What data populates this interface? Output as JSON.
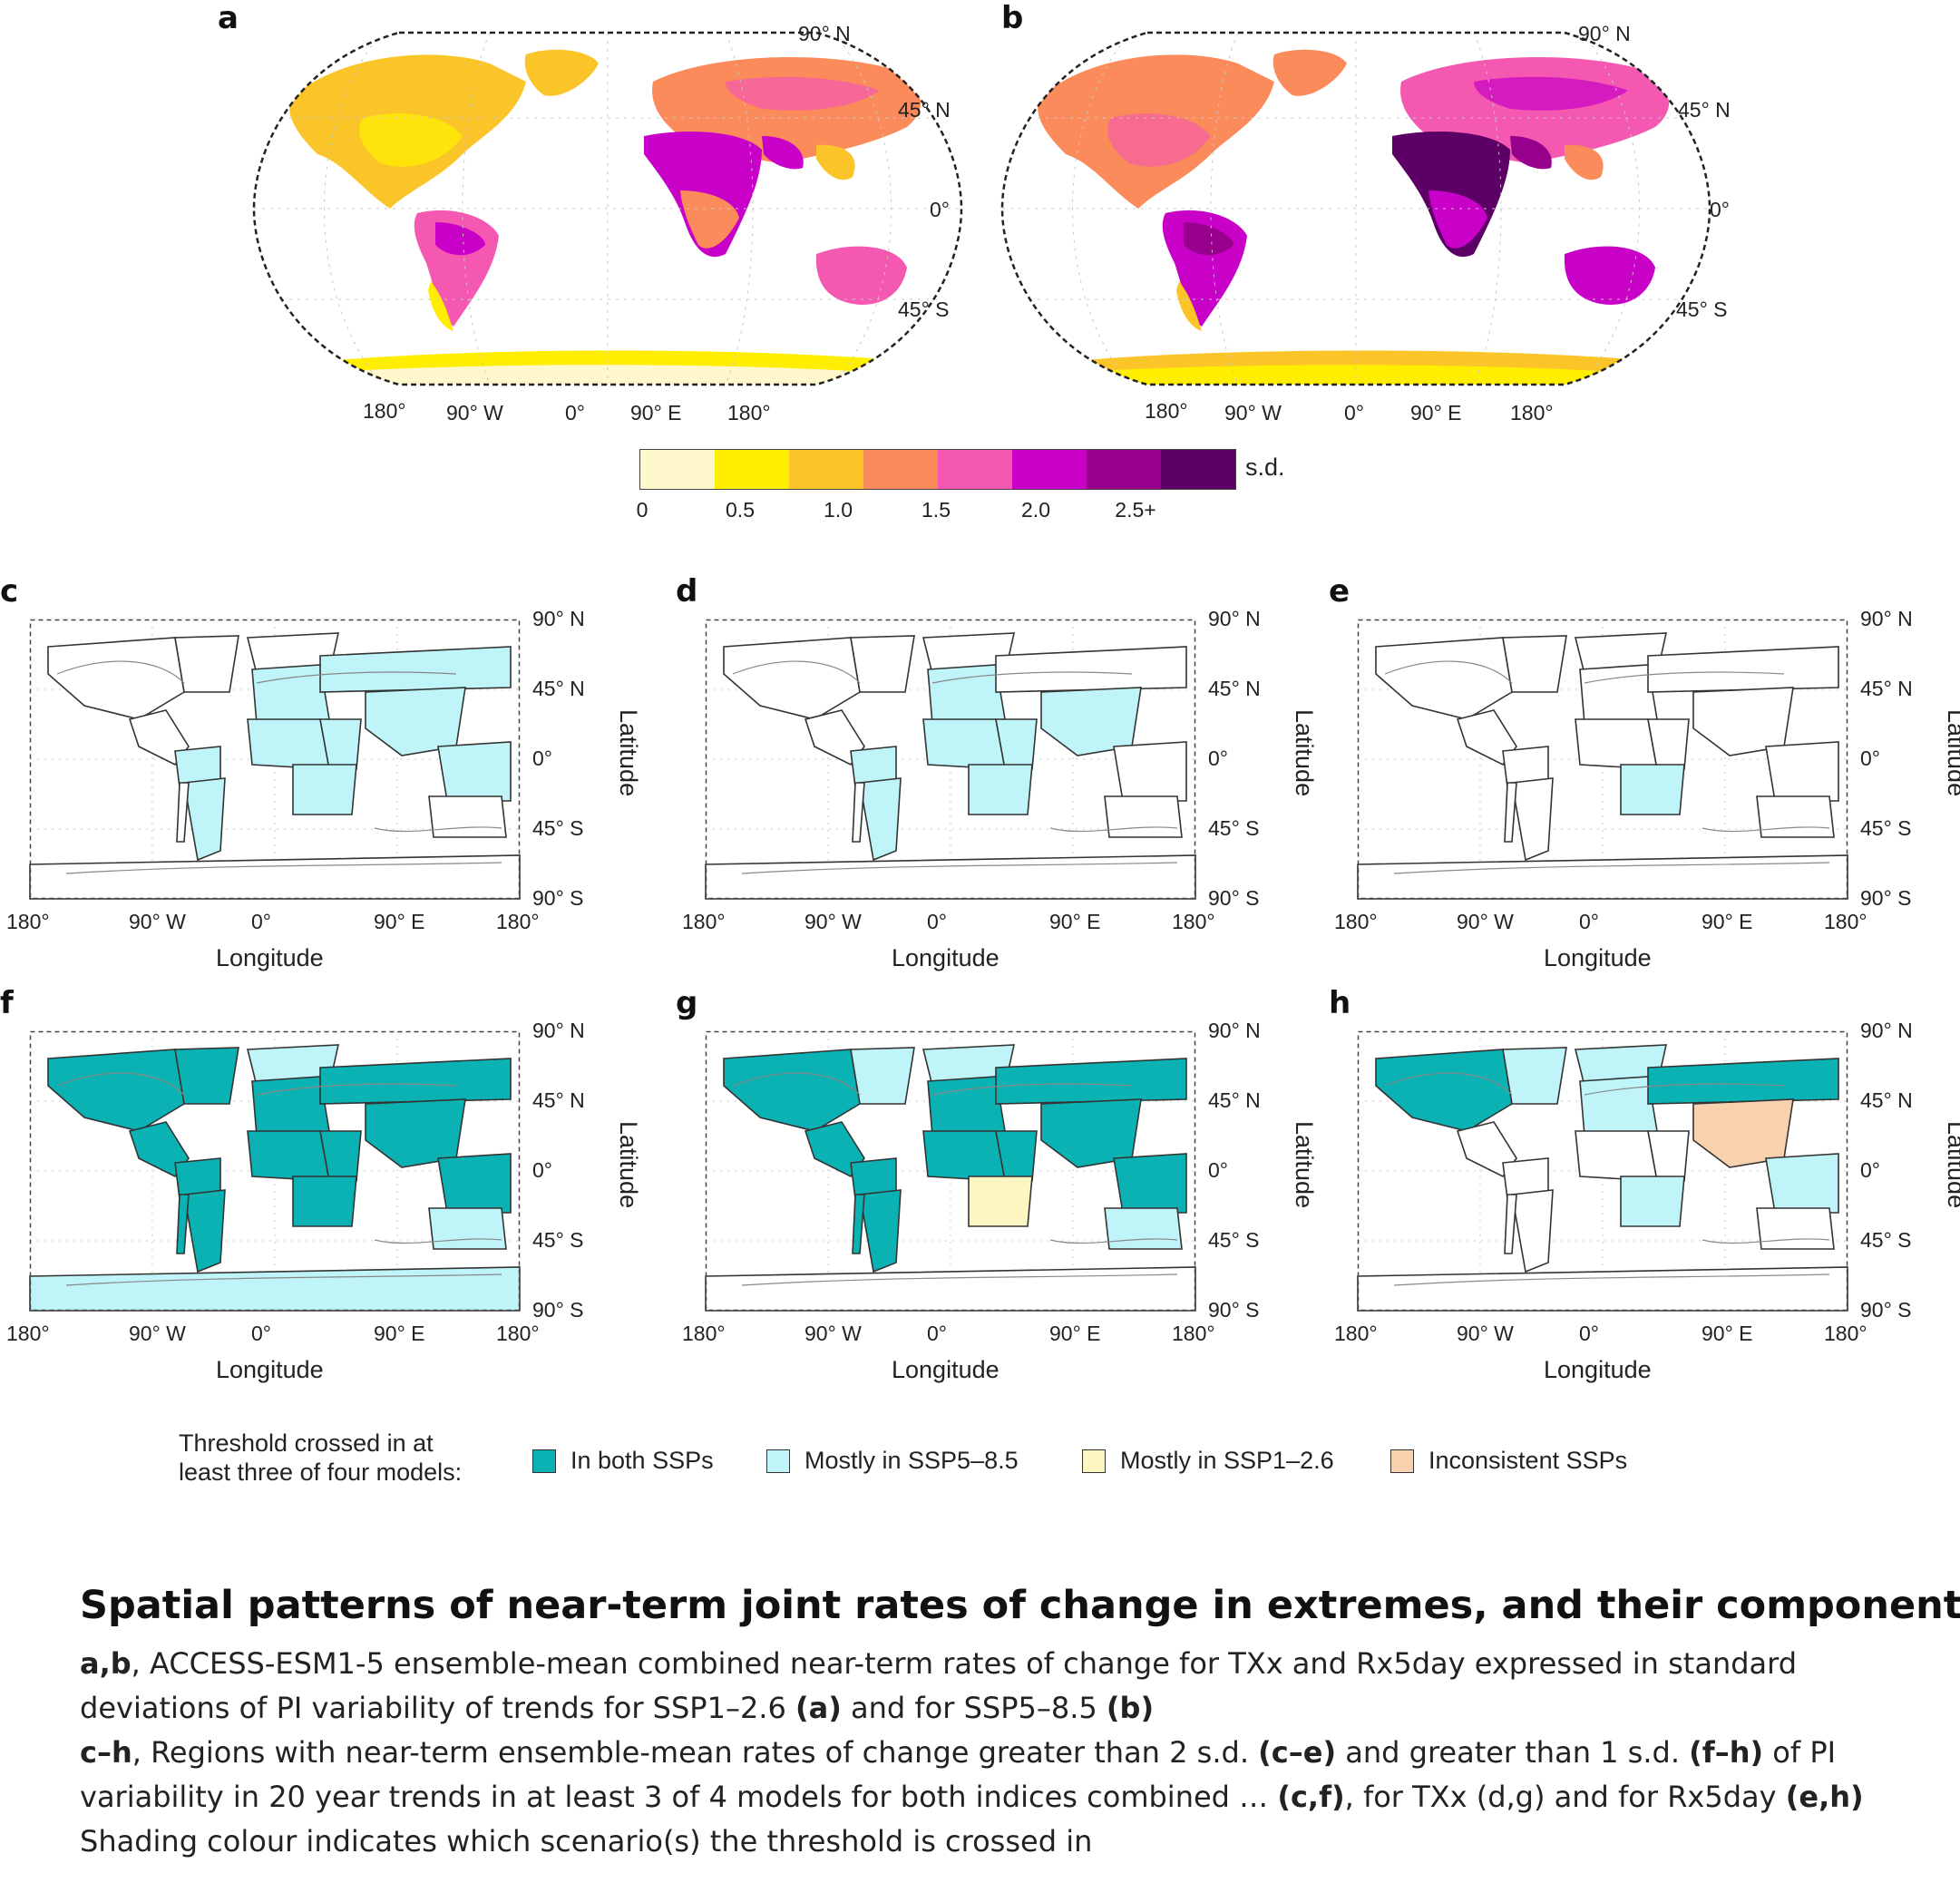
{
  "panels": {
    "a": "a",
    "b": "b",
    "c": "c",
    "d": "d",
    "e": "e",
    "f": "f",
    "g": "g",
    "h": "h"
  },
  "robinson": {
    "lat_labels": [
      "90° N",
      "45° N",
      "0°",
      "45° S"
    ],
    "lon_labels": [
      "180°",
      "90° W",
      "0°",
      "90° E",
      "180°"
    ]
  },
  "colorbar": {
    "unit": "s.d.",
    "ticks": [
      "0",
      "0.5",
      "1.0",
      "1.5",
      "2.0",
      "2.5+"
    ],
    "colors": [
      "#fff8cc",
      "#ffee00",
      "#fbc52a",
      "#fb8b5a",
      "#f558b0",
      "#c800c8",
      "#96008c",
      "#5c0066"
    ]
  },
  "grid_maps": {
    "lat_labels": [
      "90° N",
      "45° N",
      "0°",
      "45° S",
      "90° S"
    ],
    "lon_labels": [
      "180°",
      "90° W",
      "0°",
      "90° E",
      "180°"
    ],
    "xlabel": "Longitude",
    "ylabel": "Latitude"
  },
  "legend": {
    "intro_line1": "Threshold crossed in at",
    "intro_line2": "least three of four models:",
    "items": [
      {
        "label": "In both SSPs",
        "color": "#0ab2b4"
      },
      {
        "label": "Mostly in SSP5–8.5",
        "color": "#bff5f8"
      },
      {
        "label": "Mostly in SSP1–2.6",
        "color": "#fdf6c0"
      },
      {
        "label": "Inconsistent SSPs",
        "color": "#f8d2ae"
      }
    ]
  },
  "caption": {
    "title": "Spatial patterns of near-term joint rates of change in extremes, and their components",
    "p1_lead": "a,b",
    "p1_text": ", ACCESS-ESM1-5 ensemble-mean combined near-term rates of change for TXx and Rx5day expressed in standard deviations of PI variability of trends for SSP1–2.6 ",
    "p1_ref_a": "(a)",
    "p1_mid": " and for SSP5–8.5 ",
    "p1_ref_b": "(b)",
    "p2_lead": "c–h",
    "p2_t1": ", Regions with near-term ensemble-mean rates of change greater than 2 s.d. ",
    "p2_r1": "(c–e)",
    "p2_t2": " and greater than 1 s.d. ",
    "p2_r2": "(f–h)",
    "p2_t3": " of PI variability in 20 year trends in at least 3 of 4 models for both indices combined … ",
    "p2_r3": "(c,f)",
    "p2_t4": ", for TXx (d,g) and for Rx5day ",
    "p2_r4": "(e,h)",
    "p3": "Shading colour indicates which scenario(s) the threshold is crossed in"
  }
}
